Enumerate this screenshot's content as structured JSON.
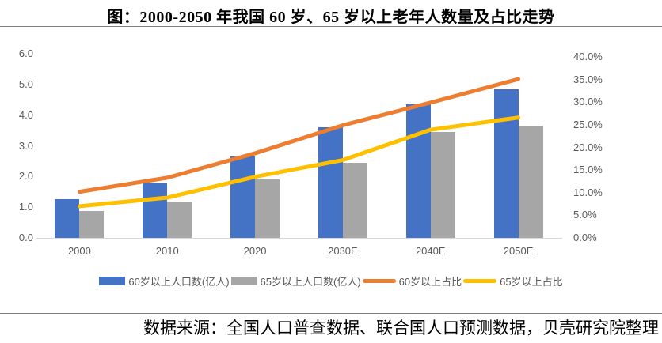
{
  "page": {
    "title": "图：2000-2050 年我国 60 岁、65 岁以上老年人数量及占比走势",
    "source_note": "数据来源：全国人口普查数据、联合国人口预测数据，贝壳研究院整理"
  },
  "chart_data": {
    "type": "bar",
    "subtype": "bar-line-combo",
    "title": "图：2000-2050 年我国 60 岁、65 岁以上老年人数量及占比走势",
    "categories": [
      "2000",
      "2010",
      "2020",
      "2030E",
      "2040E",
      "2050E"
    ],
    "series": [
      {
        "name": "60岁以上人口数(亿人)",
        "type": "bar",
        "axis": "left",
        "color": "#4472C4",
        "values": [
          1.26,
          1.78,
          2.64,
          3.6,
          4.35,
          4.85
        ]
      },
      {
        "name": "65岁以上人口数(亿人)",
        "type": "bar",
        "axis": "left",
        "color": "#A6A6A6",
        "values": [
          0.88,
          1.19,
          1.91,
          2.45,
          3.45,
          3.65
        ]
      },
      {
        "name": "60岁以上占比",
        "type": "line",
        "axis": "right",
        "color": "#ED7D31",
        "values": [
          10.2,
          13.3,
          18.7,
          24.9,
          29.9,
          35.1
        ]
      },
      {
        "name": "65岁以上占比",
        "type": "line",
        "axis": "right",
        "color": "#FFC000",
        "values": [
          7.0,
          8.9,
          13.5,
          17.2,
          23.9,
          26.6
        ]
      }
    ],
    "left_axis": {
      "min": 0,
      "max": 6,
      "step": 1,
      "tick_labels": [
        "0.0",
        "1.0",
        "2.0",
        "3.0",
        "4.0",
        "5.0",
        "6.0"
      ]
    },
    "right_axis": {
      "min": 0,
      "max": 40,
      "step": 5,
      "tick_labels": [
        "0.0%",
        "5.0%",
        "10.0%",
        "15.0%",
        "20.0%",
        "25.0%",
        "30.0%",
        "35.0%",
        "40.0%"
      ],
      "unit": "%"
    },
    "grid": false,
    "legend_position": "bottom",
    "axis_line_color": "#D9D9D9",
    "tick_text_color": "#595959"
  }
}
